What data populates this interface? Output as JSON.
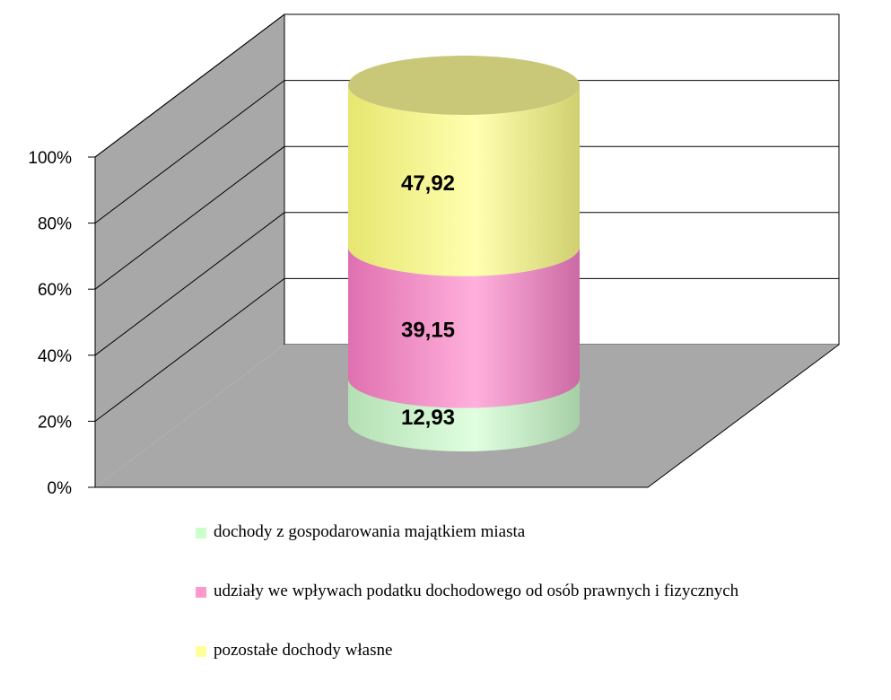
{
  "chart_data": {
    "type": "bar",
    "subtype": "stacked-100-percent-3d-cylinder",
    "categories": [
      ""
    ],
    "series": [
      {
        "name": "dochody z gospodarowania majątkiem miasta",
        "values": [
          12.93
        ],
        "label": "12,93",
        "color": "#ccffcc"
      },
      {
        "name": "udziały we wpływach podatku dochodowego od osób prawnych i fizycznych",
        "values": [
          39.15
        ],
        "label": "39,15",
        "color": "#ff99cc"
      },
      {
        "name": "pozostałe dochody własne",
        "values": [
          47.92
        ],
        "label": "47,92",
        "color": "#ffff99"
      }
    ],
    "yticks": [
      "0%",
      "20%",
      "40%",
      "60%",
      "80%",
      "100%"
    ],
    "ylim": [
      0,
      100
    ],
    "grid": true,
    "legend_position": "bottom",
    "title": "",
    "xlabel": "",
    "ylabel": ""
  }
}
